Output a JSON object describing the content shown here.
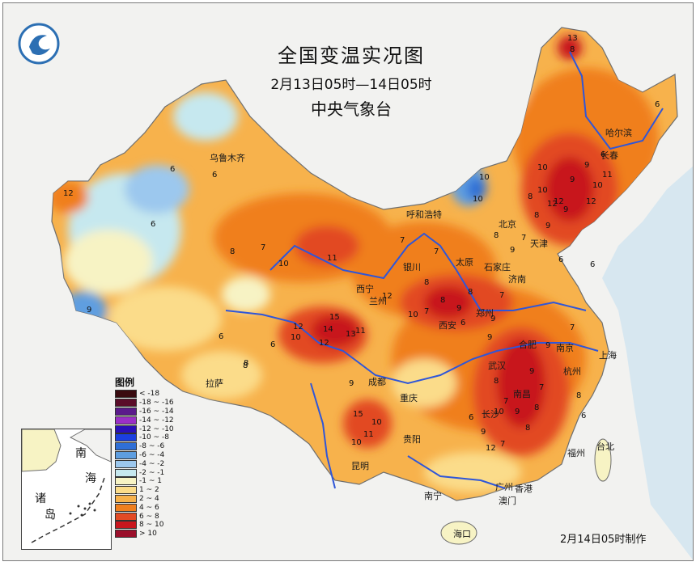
{
  "title": {
    "main": "全国变温实况图",
    "period": "2月13日05时—14日05时",
    "issuer": "中央气象台"
  },
  "footer": "2月14日05时制作",
  "legend": {
    "title": "图例",
    "items": [
      {
        "label": "< -18",
        "color": "#3a0c10"
      },
      {
        "label": "-18 ~ -16",
        "color": "#5a0d29"
      },
      {
        "label": "-16 ~ -14",
        "color": "#5b1a8c"
      },
      {
        "label": "-14 ~ -12",
        "color": "#9b2fc7"
      },
      {
        "label": "-12 ~ -10",
        "color": "#2a0fb8"
      },
      {
        "label": "-10 ~ -8",
        "color": "#1b3fe0"
      },
      {
        "label": "-8 ~ -6",
        "color": "#2f6fd6"
      },
      {
        "label": "-6 ~ -4",
        "color": "#5e9ee0"
      },
      {
        "label": "-4 ~ -2",
        "color": "#9cc8ee"
      },
      {
        "label": "-2 ~ -1",
        "color": "#c6e8ef"
      },
      {
        "label": "-1 ~ 1",
        "color": "#f7f3c4"
      },
      {
        "label": "1 ~ 2",
        "color": "#fbdc8a"
      },
      {
        "label": "2 ~ 4",
        "color": "#f7b24c"
      },
      {
        "label": "4 ~ 6",
        "color": "#f07f1e"
      },
      {
        "label": "6 ~ 8",
        "color": "#e24a24"
      },
      {
        "label": "8 ~ 10",
        "color": "#c8161e"
      },
      {
        "label": "> 10",
        "color": "#9a0f2a"
      }
    ]
  },
  "inset": {
    "labels": [
      "南",
      "海",
      "诸",
      "岛"
    ]
  },
  "cities": [
    "乌鲁木齐",
    "呼和浩特",
    "哈尔滨",
    "长春",
    "北京",
    "天津",
    "太原",
    "石家庄",
    "银川",
    "西宁",
    "兰州",
    "济南",
    "西安",
    "郑州",
    "合肥",
    "南京",
    "上海",
    "杭州",
    "武汉",
    "成都",
    "重庆",
    "拉萨",
    "南昌",
    "贵阳",
    "长沙",
    "昆明",
    "福州",
    "台北",
    "南宁",
    "广州",
    "香港",
    "澳门",
    "海口"
  ],
  "temps": [
    "13",
    "8",
    "6",
    "6",
    "12",
    "6",
    "10",
    "10",
    "6",
    "9",
    "8",
    "7",
    "10",
    "11",
    "12",
    "10",
    "12",
    "14",
    "13",
    "15",
    "11",
    "12",
    "10",
    "8",
    "9",
    "10",
    "9",
    "11",
    "10",
    "12",
    "15",
    "11",
    "10",
    "8",
    "7",
    "8",
    "9",
    "8",
    "9",
    "7",
    "8",
    "9",
    "8",
    "7",
    "9",
    "6",
    "6",
    "6",
    "8",
    "7",
    "8",
    "9",
    "7",
    "9",
    "10",
    "9",
    "12",
    "8",
    "6",
    "7",
    "10",
    "6",
    "8",
    "9",
    "7",
    "6",
    "12",
    "9",
    "8",
    "10",
    "9",
    "6",
    "6",
    "12",
    "7",
    "7",
    "9",
    "8"
  ]
}
